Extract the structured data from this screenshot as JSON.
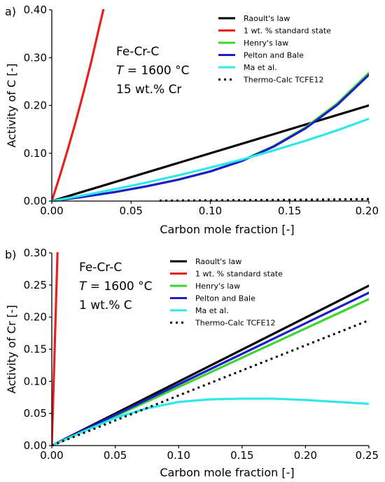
{
  "chart_data": [
    {
      "type": "line",
      "panel": "a)",
      "xlabel": "Carbon mole fraction [-]",
      "ylabel": "Activity of C [-]",
      "xlim": [
        0,
        0.2
      ],
      "ylim": [
        0,
        0.4
      ],
      "xticks": [
        "0.00",
        "0.05",
        "0.10",
        "0.15",
        "0.20"
      ],
      "yticks": [
        "0.00",
        "0.10",
        "0.20",
        "0.30",
        "0.40"
      ],
      "annotation": [
        "Fe-Cr-C",
        "T",
        " = 1600 °C",
        "15 wt.% Cr"
      ],
      "legend_position": "top-right",
      "grid": false,
      "series": [
        {
          "name": "Raoult's law",
          "color": "#000000",
          "dash": "solid",
          "x": [
            0,
            0.2
          ],
          "y": [
            0,
            0.2
          ]
        },
        {
          "name": "1 wt. % standard state",
          "color": "#e8201e",
          "dash": "solid",
          "x": [
            0,
            0.005,
            0.01,
            0.015,
            0.02,
            0.025,
            0.03,
            0.0325
          ],
          "y": [
            0,
            0.052,
            0.107,
            0.165,
            0.227,
            0.293,
            0.365,
            0.4
          ]
        },
        {
          "name": "Henry's law",
          "color": "#3fd52f",
          "dash": "solid",
          "x": [
            0,
            0.02,
            0.04,
            0.06,
            0.08,
            0.1,
            0.12,
            0.14,
            0.16,
            0.18,
            0.2
          ],
          "y": [
            0,
            0.009,
            0.019,
            0.031,
            0.045,
            0.062,
            0.085,
            0.115,
            0.154,
            0.204,
            0.268
          ]
        },
        {
          "name": "Pelton and Bale",
          "color": "#1c1ec9",
          "dash": "solid",
          "x": [
            0,
            0.02,
            0.04,
            0.06,
            0.08,
            0.1,
            0.12,
            0.14,
            0.16,
            0.18,
            0.2
          ],
          "y": [
            0,
            0.009,
            0.019,
            0.031,
            0.045,
            0.062,
            0.084,
            0.114,
            0.152,
            0.201,
            0.264
          ]
        },
        {
          "name": "Ma et al.",
          "color": "#2ee8ea",
          "dash": "solid",
          "x": [
            0,
            0.02,
            0.04,
            0.06,
            0.08,
            0.1,
            0.12,
            0.14,
            0.16,
            0.18,
            0.2
          ],
          "y": [
            0,
            0.012,
            0.025,
            0.039,
            0.054,
            0.07,
            0.087,
            0.106,
            0.126,
            0.148,
            0.172
          ]
        },
        {
          "name": "Thermo-Calc TCFE12",
          "color": "#000000",
          "dash": "dotted",
          "x": [
            0.068,
            0.1,
            0.15,
            0.2
          ],
          "y": [
            0.001,
            0.0015,
            0.0025,
            0.004
          ]
        }
      ]
    },
    {
      "type": "line",
      "panel": "b)",
      "xlabel": "Carbon mole fraction [-]",
      "ylabel": "Activity of Cr [-]",
      "xlim": [
        0,
        0.25
      ],
      "ylim": [
        0,
        0.3
      ],
      "xticks": [
        "0.00",
        "0.05",
        "0.10",
        "0.15",
        "0.20",
        "0.25"
      ],
      "yticks": [
        "0.00",
        "0.05",
        "0.10",
        "0.15",
        "0.20",
        "0.25",
        "0.30"
      ],
      "annotation": [
        "Fe-Cr-C",
        "T",
        " = 1600 °C",
        "1 wt.% C"
      ],
      "legend_position": "top-right",
      "grid": false,
      "series": [
        {
          "name": "Raoult's law",
          "color": "#000000",
          "dash": "solid",
          "x": [
            0,
            0.25
          ],
          "y": [
            0,
            0.249
          ]
        },
        {
          "name": "1 wt. % standard state",
          "color": "#e8201e",
          "dash": "solid",
          "x": [
            0,
            0.0045
          ],
          "y": [
            0,
            0.3
          ]
        },
        {
          "name": "Henry's law",
          "color": "#3fd52f",
          "dash": "solid",
          "x": [
            0,
            0.25
          ],
          "y": [
            0,
            0.228
          ]
        },
        {
          "name": "Pelton and Bale",
          "color": "#1c1ec9",
          "dash": "solid",
          "x": [
            0,
            0.25
          ],
          "y": [
            0,
            0.238
          ]
        },
        {
          "name": "Ma et al.",
          "color": "#2ee8ea",
          "dash": "solid",
          "x": [
            0,
            0.025,
            0.05,
            0.075,
            0.1,
            0.125,
            0.15,
            0.175,
            0.2,
            0.225,
            0.25
          ],
          "y": [
            0,
            0.022,
            0.043,
            0.058,
            0.068,
            0.072,
            0.073,
            0.073,
            0.071,
            0.068,
            0.065
          ]
        },
        {
          "name": "Thermo-Calc TCFE12",
          "color": "#000000",
          "dash": "dotted",
          "x": [
            0,
            0.25
          ],
          "y": [
            0,
            0.195
          ]
        }
      ]
    }
  ]
}
